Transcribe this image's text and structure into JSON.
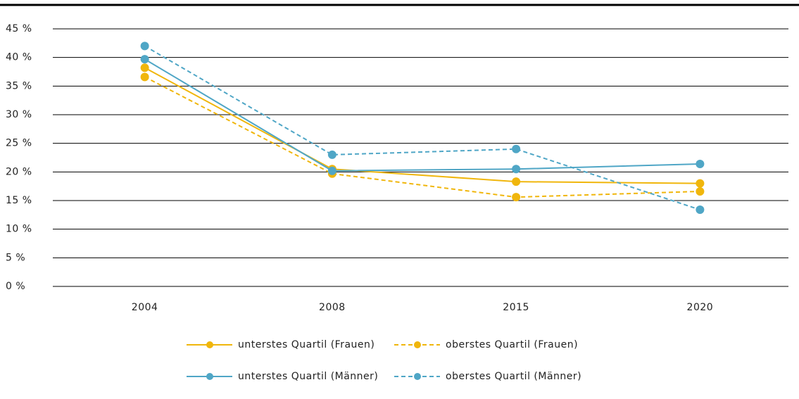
{
  "chart_data": {
    "type": "line",
    "categories": [
      "2004",
      "2008",
      "2015",
      "2020"
    ],
    "series": [
      {
        "name": "unterstes Quartil (Frauen)",
        "color": "#f0b60c",
        "dashed": false,
        "values": [
          38.2,
          20.5,
          18.3,
          18.0
        ]
      },
      {
        "name": "oberstes Quartil (Frauen)",
        "color": "#f0b60c",
        "dashed": true,
        "values": [
          36.6,
          19.7,
          15.6,
          16.6
        ]
      },
      {
        "name": "unterstes Quartil (Männer)",
        "color": "#4fa6c6",
        "dashed": false,
        "values": [
          39.7,
          20.2,
          20.5,
          21.4
        ]
      },
      {
        "name": "oberstes Quartil (Männer)",
        "color": "#4fa6c6",
        "dashed": true,
        "values": [
          42.0,
          23.0,
          24.0,
          13.4
        ]
      }
    ],
    "ylim": [
      0,
      45
    ],
    "yticks": [
      {
        "value": 0,
        "label": "0 %"
      },
      {
        "value": 5,
        "label": "5 %"
      },
      {
        "value": 10,
        "label": "10 %"
      },
      {
        "value": 15,
        "label": "15 %"
      },
      {
        "value": 20,
        "label": "20 %"
      },
      {
        "value": 25,
        "label": "25 %"
      },
      {
        "value": 30,
        "label": "30 %"
      },
      {
        "value": 35,
        "label": "35 %"
      },
      {
        "value": 40,
        "label": "40 %"
      },
      {
        "value": 45,
        "label": "45 %"
      }
    ],
    "grid": true
  }
}
